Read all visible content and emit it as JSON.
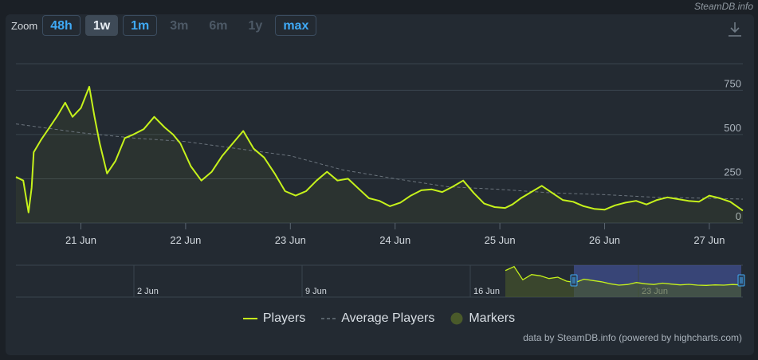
{
  "brand": "SteamDB.info",
  "zoom": {
    "label": "Zoom",
    "buttons": [
      {
        "label": "48h",
        "state": "on"
      },
      {
        "label": "1w",
        "state": "sel"
      },
      {
        "label": "1m",
        "state": "on"
      },
      {
        "label": "3m",
        "state": "off"
      },
      {
        "label": "6m",
        "state": "off"
      },
      {
        "label": "1y",
        "state": "off"
      },
      {
        "label": "max",
        "state": "on"
      }
    ]
  },
  "download_icon": "download-icon",
  "credit": "data by SteamDB.info (powered by highcharts.com)",
  "legend": [
    {
      "label": "Players",
      "color": "#c6f21b",
      "style": "line"
    },
    {
      "label": "Average Players",
      "color": "#6b747d",
      "style": "dash"
    },
    {
      "label": "Markers",
      "color": "#4a5a2a",
      "style": "dot"
    }
  ],
  "navigator": {
    "tick_labels": [
      "2 Jun",
      "9 Jun",
      "16 Jun",
      "23 Jun"
    ]
  },
  "chart_data": {
    "type": "line",
    "x_tick_labels": [
      "21 Jun",
      "22 Jun",
      "23 Jun",
      "24 Jun",
      "25 Jun",
      "26 Jun",
      "27 Jun"
    ],
    "x_range_days": [
      20.38,
      27.32
    ],
    "y_ticks": [
      0,
      250,
      500,
      750
    ],
    "ylim": [
      0,
      900
    ],
    "grid": true,
    "legend_position": "bottom",
    "series": [
      {
        "name": "Players",
        "color": "#c6f21b",
        "x": [
          20.38,
          20.45,
          20.5,
          20.53,
          20.55,
          20.62,
          20.7,
          20.78,
          20.85,
          20.92,
          21.0,
          21.08,
          21.13,
          21.18,
          21.25,
          21.33,
          21.42,
          21.5,
          21.6,
          21.7,
          21.8,
          21.88,
          21.95,
          22.05,
          22.15,
          22.25,
          22.35,
          22.45,
          22.55,
          22.65,
          22.75,
          22.85,
          22.95,
          23.05,
          23.15,
          23.25,
          23.35,
          23.45,
          23.55,
          23.65,
          23.75,
          23.85,
          23.95,
          24.05,
          24.15,
          24.25,
          24.35,
          24.45,
          24.55,
          24.65,
          24.75,
          24.85,
          24.95,
          25.05,
          25.12,
          25.2,
          25.3,
          25.4,
          25.5,
          25.6,
          25.7,
          25.8,
          25.9,
          26.0,
          26.1,
          26.2,
          26.3,
          26.4,
          26.5,
          26.6,
          26.7,
          26.8,
          26.9,
          27.0,
          27.1,
          27.2,
          27.32
        ],
        "values": [
          260,
          240,
          60,
          200,
          400,
          470,
          540,
          610,
          680,
          600,
          650,
          770,
          600,
          450,
          280,
          350,
          480,
          500,
          530,
          600,
          540,
          500,
          450,
          320,
          240,
          290,
          380,
          450,
          520,
          420,
          370,
          280,
          180,
          155,
          180,
          240,
          290,
          240,
          250,
          195,
          140,
          125,
          95,
          115,
          155,
          185,
          190,
          175,
          205,
          240,
          170,
          110,
          90,
          85,
          105,
          140,
          175,
          210,
          170,
          130,
          120,
          95,
          80,
          75,
          100,
          115,
          125,
          105,
          130,
          145,
          135,
          125,
          120,
          155,
          140,
          120,
          70
        ]
      },
      {
        "name": "Average Players",
        "color": "#6b747d",
        "x": [
          20.38,
          21.0,
          21.5,
          22.0,
          22.5,
          23.0,
          23.5,
          24.0,
          24.5,
          25.0,
          25.5,
          26.0,
          26.5,
          27.0,
          27.32
        ],
        "values": [
          560,
          510,
          480,
          460,
          420,
          380,
          300,
          250,
          205,
          190,
          170,
          160,
          145,
          140,
          135
        ]
      }
    ]
  }
}
